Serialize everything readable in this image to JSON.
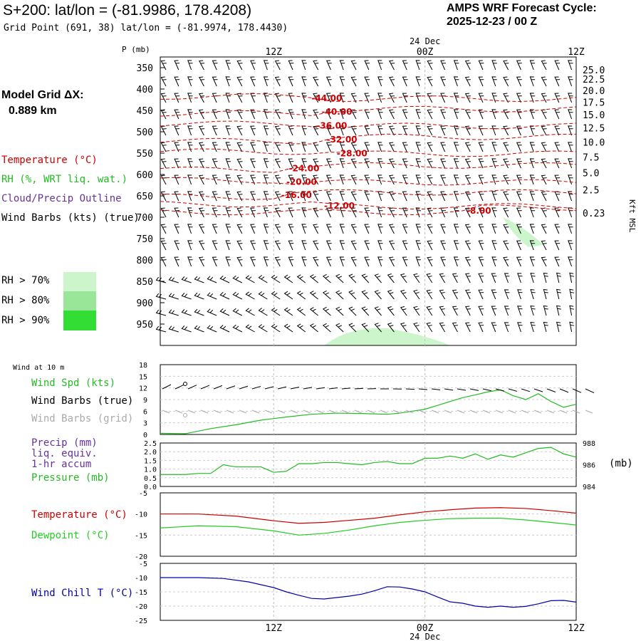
{
  "header": {
    "title": "S+200:  lat/lon = (-81.9986, 178.4208)",
    "subtitle": "Grid Point (691, 38) lat/lon = (-81.9974, 178.4430)",
    "cycle_title": "AMPS WRF Forecast Cycle:",
    "cycle_date": "2025-12-23 / 00  Z"
  },
  "model_grid": {
    "label": "Model Grid ΔX:",
    "value": "0.889 km"
  },
  "legend": {
    "temperature": "Temperature (°C)",
    "rh": "RH (%, WRT liq. wat.)",
    "cloud": "Cloud/Precip Outline",
    "wind": "Wind Barbs (kts) (true)",
    "rh70": "RH > 70%",
    "rh80": "RH > 80%",
    "rh90": "RH > 90%"
  },
  "colors": {
    "temperature": "#cc0000",
    "rh": "#22bb22",
    "cloud": "#663399",
    "wind_true": "#000000",
    "wind_grid": "#aaaaaa",
    "wind_chill": "#0000aa",
    "dewpoint": "#22cc22",
    "rh70": "#ccf5cc",
    "rh80": "#99e699",
    "rh90": "#33dd33"
  },
  "chart_data": {
    "time_axis": {
      "ticks": [
        {
          "h": 12,
          "label": "12Z"
        },
        {
          "h": 24,
          "label": "00Z"
        },
        {
          "h": 36,
          "label": "12Z"
        }
      ],
      "date_label": "24 Dec",
      "start_hour": 3,
      "end_hour": 36
    },
    "cross_section": {
      "type": "contour",
      "ylabel": "P (mb)",
      "right_label": "Kft MSL",
      "pressure_ticks": [
        350,
        400,
        450,
        500,
        550,
        600,
        650,
        700,
        750,
        800,
        850,
        900,
        950
      ],
      "height_ticks": [
        {
          "p": 355,
          "label": "25.0"
        },
        {
          "p": 377,
          "label": "22.5"
        },
        {
          "p": 403,
          "label": "20.0"
        },
        {
          "p": 431,
          "label": "17.5"
        },
        {
          "p": 460,
          "label": "15.0"
        },
        {
          "p": 491,
          "label": "12.5"
        },
        {
          "p": 524,
          "label": "10.0"
        },
        {
          "p": 559,
          "label": "7.5"
        },
        {
          "p": 596,
          "label": "5.0"
        },
        {
          "p": 636,
          "label": "2.5"
        },
        {
          "p": 690,
          "label": "0.23"
        }
      ],
      "temperature_labels": [
        {
          "label": "-44.00",
          "h": 15.0,
          "p": 420
        },
        {
          "label": "-40.00",
          "h": 15.8,
          "p": 452
        },
        {
          "label": "-36.00",
          "h": 15.4,
          "p": 484
        },
        {
          "label": "-32.00",
          "h": 16.2,
          "p": 517
        },
        {
          "label": "-28.00",
          "h": 17.0,
          "p": 549
        },
        {
          "label": "-24.00",
          "h": 13.2,
          "p": 584
        },
        {
          "label": "-20.00",
          "h": 13.0,
          "p": 616
        },
        {
          "label": "-16.00",
          "h": 12.6,
          "p": 647
        },
        {
          "label": "-12.00",
          "h": 16.0,
          "p": 672
        },
        {
          "label": "-8.00",
          "h": 27.3,
          "p": 683
        }
      ]
    },
    "surface_wind": {
      "type": "line",
      "title": "Wind at 10 m",
      "label_speed": "Wind Spd (kts)",
      "label_true": "Wind Barbs (true)",
      "label_grid": "Wind Barbs (grid)",
      "yticks": [
        "18",
        "15",
        "12",
        "9",
        "6",
        "3",
        "0"
      ],
      "ylim": [
        0,
        18
      ],
      "x": [
        3,
        5,
        7,
        9,
        11,
        13,
        15,
        17,
        19,
        21,
        22,
        23,
        24,
        25,
        26,
        27,
        28,
        29,
        30,
        31,
        32,
        33,
        34,
        35,
        36
      ],
      "speed": [
        0.3,
        0.2,
        1.5,
        2.5,
        3.7,
        4.5,
        5.2,
        5.5,
        5.4,
        5.2,
        5.5,
        6.0,
        6.5,
        7.5,
        8.5,
        9.5,
        10.2,
        11.0,
        11.5,
        10.0,
        9.0,
        10.5,
        8.5,
        7.0,
        7.8
      ]
    },
    "precip_pressure": {
      "type": "line",
      "label_precip": "Precip (mm)",
      "label_equiv": "liq. equiv.",
      "label_accum": "1-hr accum",
      "label_pressure": "Pressure (mb)",
      "yticks_left": [
        "2.5",
        "2.0",
        "1.5",
        "1.0",
        "0.5",
        "0.0"
      ],
      "yticks_right": [
        {
          "v": 988,
          "label": "988"
        },
        {
          "v": 986,
          "label": "986"
        },
        {
          "v": 984,
          "label": "984"
        }
      ],
      "unit_right": "(mb)",
      "ylim_left": [
        0,
        2.5
      ],
      "ylim_right": [
        984,
        988
      ],
      "x": [
        3,
        4,
        5,
        6,
        7,
        8,
        9,
        10,
        11,
        12,
        13,
        14,
        15,
        16,
        17,
        18,
        19,
        20,
        21,
        22,
        23,
        24,
        25,
        26,
        27,
        28,
        29,
        30,
        31,
        32,
        33,
        34,
        35,
        36
      ],
      "pressure": [
        985.1,
        985.1,
        985.1,
        985.2,
        985.2,
        986.0,
        985.8,
        985.8,
        985.8,
        985.3,
        985.4,
        986.1,
        986.1,
        986.2,
        986.2,
        986.1,
        986.0,
        986.2,
        986.3,
        986.1,
        986.1,
        986.6,
        986.6,
        986.8,
        986.6,
        987.0,
        986.5,
        986.9,
        986.7,
        987.1,
        987.5,
        987.6,
        987.0,
        986.7
      ]
    },
    "temperature": {
      "type": "line",
      "label_temp": "Temperature (°C)",
      "label_dew": "Dewpoint (°C)",
      "yticks": [
        "-5",
        "-10",
        "-15",
        "-20"
      ],
      "ylim": [
        -20,
        -5
      ],
      "x": [
        3,
        6,
        9,
        12,
        14,
        16,
        18,
        20,
        22,
        24,
        26,
        28,
        30,
        32,
        34,
        36
      ],
      "temp": [
        -10.0,
        -10.0,
        -10.5,
        -11.6,
        -12.2,
        -12.0,
        -11.5,
        -11.0,
        -10.2,
        -9.5,
        -9.0,
        -8.6,
        -8.5,
        -8.7,
        -9.2,
        -9.8
      ],
      "dew": [
        -13.3,
        -12.8,
        -13.0,
        -14.0,
        -15.0,
        -14.6,
        -13.8,
        -12.8,
        -12.0,
        -11.5,
        -11.1,
        -11.0,
        -11.0,
        -11.4,
        -12.0,
        -12.6
      ]
    },
    "wind_chill": {
      "type": "line",
      "label": "Wind Chill T (°C)",
      "yticks": [
        "-5",
        "-10",
        "-15",
        "-20",
        "-25"
      ],
      "ylim": [
        -25,
        -5
      ],
      "x": [
        3,
        6,
        8,
        10,
        12,
        13,
        14,
        15,
        16,
        17,
        18,
        19,
        20,
        21,
        22,
        23,
        24,
        25,
        26,
        27,
        28,
        29,
        30,
        31,
        32,
        33,
        34,
        35,
        36
      ],
      "chill": [
        -10.0,
        -10.0,
        -10.3,
        -11.5,
        -13.5,
        -15.0,
        -16.2,
        -17.3,
        -17.5,
        -17.0,
        -16.5,
        -15.8,
        -14.6,
        -13.2,
        -13.3,
        -14.0,
        -15.0,
        -16.8,
        -18.5,
        -19.0,
        -20.0,
        -20.4,
        -20.0,
        -20.4,
        -20.1,
        -19.2,
        -18.1,
        -18.0,
        -18.6
      ]
    }
  }
}
